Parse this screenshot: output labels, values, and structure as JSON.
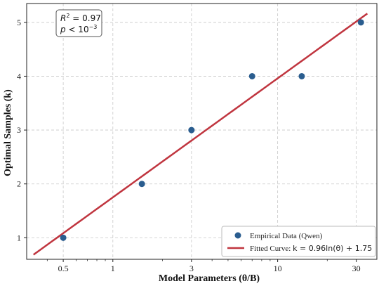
{
  "chart_data": {
    "type": "scatter",
    "xlabel": "Model Parameters (θ/B)",
    "ylabel": "Optimal Samples (k)",
    "x_scale": "log",
    "xlim": [
      0.3,
      40
    ],
    "ylim": [
      0.6,
      5.35
    ],
    "x_ticks": [
      0.5,
      1,
      3,
      10,
      30
    ],
    "x_tick_labels": [
      "0.5",
      "1",
      "3",
      "10",
      "30"
    ],
    "y_ticks": [
      1,
      2,
      3,
      4,
      5
    ],
    "y_tick_labels": [
      "1",
      "2",
      "3",
      "4",
      "5"
    ],
    "grid": true,
    "legend_position": "bottom-right",
    "series": [
      {
        "name": "Empirical Data (Qwen)",
        "kind": "scatter",
        "color": "#2a5d8f",
        "x": [
          0.5,
          1.5,
          3,
          7,
          14,
          32
        ],
        "y": [
          1,
          2,
          3,
          4,
          4,
          5
        ]
      },
      {
        "name_prefix": "Fitted Curve: ",
        "name_math": "k = 0.96ln(θ) + 1.75",
        "kind": "line",
        "color": "#c0353f",
        "x_range": [
          0.33,
          35
        ]
      }
    ],
    "annotation": {
      "r2_label": "R",
      "r2_exp": "2",
      "r2_value": " = 0.97",
      "p_label": "p",
      "p_value": " < 10",
      "p_exp": "−3",
      "position": "top-left"
    }
  }
}
